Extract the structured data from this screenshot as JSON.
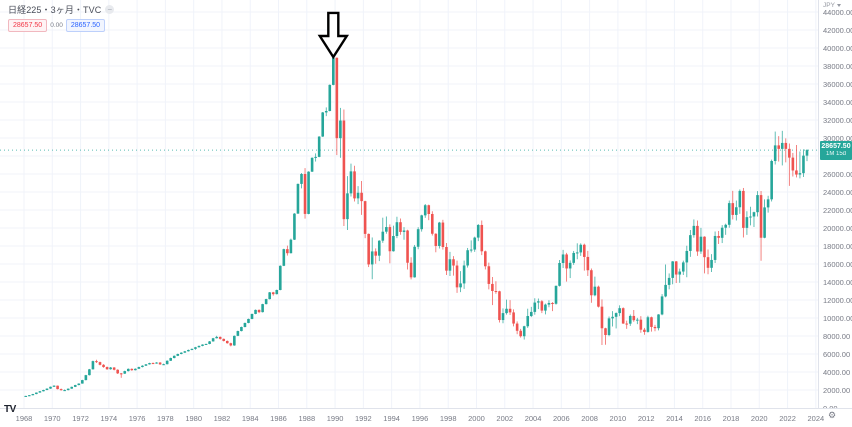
{
  "colors": {
    "up": "#26a69a",
    "down": "#ef5350",
    "grid": "#f0f3fa",
    "axis_text": "#787b86",
    "border": "#e0e3eb",
    "badge": "#26a69a",
    "price_line": "#26a69a",
    "arrow_stroke": "#000000",
    "arrow_fill": "#ffffff"
  },
  "header": {
    "symbol_title": "日経225・3ヶ月・TVC",
    "sell_price": "28657.50",
    "spread": "0.00",
    "buy_price": "28657.50"
  },
  "price_axis": {
    "currency_label": "JPY",
    "last_price_label": "28657.50",
    "countdown": "1M 15d",
    "tick_values": [
      44000,
      42000,
      40000,
      38000,
      36000,
      34000,
      32000,
      30000,
      26000,
      24000,
      22000,
      20000,
      18000,
      16000,
      14000,
      12000,
      10000,
      8000,
      6000,
      4000,
      2000,
      0
    ]
  },
  "time_axis": {
    "years": [
      1968,
      1970,
      1972,
      1974,
      1976,
      1978,
      1980,
      1982,
      1984,
      1986,
      1988,
      1990,
      1992,
      1994,
      1996,
      1998,
      2000,
      2002,
      2004,
      2006,
      2008,
      2010,
      2012,
      2014,
      2016,
      2018,
      2020,
      2022,
      2024
    ]
  },
  "footer": {
    "logo_text": "TV"
  },
  "icons": {
    "settings": "⚙"
  },
  "chart_data": {
    "type": "candlestick",
    "symbol": "日経225",
    "exchange": "TVC",
    "timeframe": "3ヶ月",
    "currency": "JPY",
    "start": "1968-Q1",
    "end": "2023-Q2",
    "ylim": [
      0,
      44000
    ],
    "x_range_years": [
      1968,
      2024
    ],
    "grid": true,
    "last_price": 28657.5,
    "annotation": {
      "type": "down-arrow",
      "points_to": "1989 bubble peak",
      "x_index": 87,
      "tip_price": 39000,
      "top_price": 43900
    },
    "candles": [
      [
        1300,
        1360,
        1285,
        1340
      ],
      [
        1340,
        1445,
        1320,
        1420
      ],
      [
        1420,
        1572,
        1405,
        1550
      ],
      [
        1550,
        1730,
        1530,
        1715
      ],
      [
        1715,
        1885,
        1700,
        1860
      ],
      [
        1860,
        2025,
        1835,
        2000
      ],
      [
        2000,
        2180,
        1975,
        2155
      ],
      [
        2155,
        2385,
        2130,
        2359
      ],
      [
        2359,
        2534,
        2330,
        2480
      ],
      [
        2480,
        2500,
        2065,
        2100
      ],
      [
        2100,
        2165,
        1929,
        1980
      ],
      [
        1980,
        2060,
        1940,
        1987
      ],
      [
        1987,
        2170,
        1960,
        2150
      ],
      [
        2150,
        2375,
        2130,
        2350
      ],
      [
        2350,
        2580,
        2325,
        2550
      ],
      [
        2550,
        2740,
        2520,
        2714
      ],
      [
        2714,
        3135,
        2700,
        3100
      ],
      [
        3100,
        3685,
        3070,
        3650
      ],
      [
        3650,
        4340,
        3615,
        4300
      ],
      [
        4300,
        5260,
        4260,
        5208
      ],
      [
        5208,
        5360,
        4995,
        5100
      ],
      [
        5100,
        5155,
        4735,
        4800
      ],
      [
        4800,
        4870,
        4475,
        4550
      ],
      [
        4550,
        4615,
        4230,
        4307
      ],
      [
        4307,
        4555,
        4255,
        4500
      ],
      [
        4500,
        4545,
        4180,
        4250
      ],
      [
        4250,
        4300,
        3780,
        3850
      ],
      [
        3850,
        3890,
        3355,
        3817
      ],
      [
        3817,
        4145,
        3785,
        4100
      ],
      [
        4100,
        4395,
        4060,
        4350
      ],
      [
        4350,
        4400,
        4135,
        4200
      ],
      [
        4200,
        4405,
        4170,
        4359
      ],
      [
        4359,
        4595,
        4330,
        4550
      ],
      [
        4550,
        4745,
        4520,
        4700
      ],
      [
        4700,
        4895,
        4670,
        4850
      ],
      [
        4850,
        5030,
        4820,
        4991
      ],
      [
        4991,
        5055,
        4900,
        4950
      ],
      [
        4950,
        5095,
        4920,
        5050
      ],
      [
        5050,
        5100,
        4795,
        4850
      ],
      [
        4850,
        4930,
        4805,
        4866
      ],
      [
        4866,
        5295,
        4840,
        5250
      ],
      [
        5250,
        5595,
        5220,
        5550
      ],
      [
        5550,
        5845,
        5520,
        5800
      ],
      [
        5800,
        6040,
        5770,
        6002
      ],
      [
        6002,
        6190,
        5970,
        6150
      ],
      [
        6150,
        6345,
        6120,
        6300
      ],
      [
        6300,
        6490,
        6270,
        6450
      ],
      [
        6450,
        6605,
        6420,
        6569
      ],
      [
        6569,
        6790,
        6475,
        6750
      ],
      [
        6750,
        6945,
        6710,
        6900
      ],
      [
        6900,
        7090,
        6865,
        7050
      ],
      [
        7050,
        7155,
        7010,
        7116
      ],
      [
        7116,
        7440,
        7090,
        7400
      ],
      [
        7400,
        7795,
        7370,
        7750
      ],
      [
        7750,
        8019,
        7720,
        7900
      ],
      [
        7900,
        7945,
        7595,
        7682
      ],
      [
        7682,
        7720,
        7395,
        7450
      ],
      [
        7450,
        7500,
        7145,
        7200
      ],
      [
        7200,
        7255,
        6849,
        6950
      ],
      [
        6950,
        8060,
        6910,
        8017
      ],
      [
        8017,
        8590,
        7985,
        8550
      ],
      [
        8550,
        9040,
        8515,
        9000
      ],
      [
        9000,
        9490,
        8965,
        9450
      ],
      [
        9450,
        9930,
        9415,
        9894
      ],
      [
        9894,
        10490,
        9860,
        10450
      ],
      [
        10450,
        10940,
        10415,
        10900
      ],
      [
        10900,
        10965,
        10545,
        10650
      ],
      [
        10650,
        11580,
        10615,
        11543
      ],
      [
        11543,
        12140,
        11510,
        12100
      ],
      [
        12100,
        12890,
        12065,
        12850
      ],
      [
        12850,
        12905,
        12485,
        12650
      ],
      [
        12650,
        13150,
        12615,
        13113
      ],
      [
        13113,
        15850,
        13080,
        15800
      ],
      [
        15800,
        17700,
        15765,
        17650
      ],
      [
        17650,
        18045,
        16935,
        17200
      ],
      [
        17200,
        18820,
        17165,
        18701
      ],
      [
        18701,
        21650,
        18670,
        21600
      ],
      [
        21600,
        24950,
        21565,
        24900
      ],
      [
        24900,
        26118,
        24400,
        26000
      ],
      [
        26000,
        26646,
        21036,
        21564
      ],
      [
        21564,
        26310,
        21530,
        26260
      ],
      [
        26260,
        27850,
        26225,
        27800
      ],
      [
        27800,
        28290,
        27385,
        27900
      ],
      [
        27900,
        30200,
        27860,
        30159
      ],
      [
        30159,
        32890,
        30120,
        32840
      ],
      [
        32840,
        33400,
        32430,
        33000
      ],
      [
        33000,
        35950,
        32960,
        35900
      ],
      [
        35900,
        38957,
        35855,
        38916
      ],
      [
        38916,
        38951,
        28105,
        29980
      ],
      [
        29980,
        33344,
        27800,
        31940
      ],
      [
        31940,
        33172,
        20221,
        20983
      ],
      [
        20983,
        25765,
        19782,
        23849
      ],
      [
        23849,
        27150,
        23500,
        26292
      ],
      [
        26292,
        26912,
        22950,
        23291
      ],
      [
        23291,
        24650,
        22650,
        23916
      ],
      [
        23916,
        25222,
        21456,
        22984
      ],
      [
        22984,
        23030,
        18870,
        19346
      ],
      [
        19346,
        19390,
        15660,
        15952
      ],
      [
        15952,
        18950,
        14309,
        17399
      ],
      [
        17399,
        17735,
        16030,
        16925
      ],
      [
        16925,
        18645,
        16320,
        18591
      ],
      [
        18591,
        21148,
        18350,
        19590
      ],
      [
        19590,
        21281,
        19365,
        20106
      ],
      [
        20106,
        20400,
        16078,
        17417
      ],
      [
        17417,
        20270,
        17370,
        19112
      ],
      [
        19112,
        21250,
        18880,
        20644
      ],
      [
        20644,
        21050,
        19250,
        19564
      ],
      [
        19564,
        20100,
        18700,
        19723
      ],
      [
        19723,
        19800,
        15382,
        16140
      ],
      [
        16140,
        16745,
        14295,
        14517
      ],
      [
        14517,
        18117,
        14485,
        17913
      ],
      [
        17913,
        20090,
        17640,
        19868
      ],
      [
        19868,
        21475,
        19600,
        21407
      ],
      [
        21407,
        22667,
        21130,
        22531
      ],
      [
        22531,
        22600,
        20870,
        21556
      ],
      [
        21556,
        21860,
        19161,
        19361
      ],
      [
        19361,
        19420,
        17303,
        18003
      ],
      [
        18003,
        20681,
        17720,
        20605
      ],
      [
        20605,
        20910,
        17600,
        17888
      ],
      [
        17888,
        18330,
        14775,
        15259
      ],
      [
        15259,
        17352,
        14664,
        16527
      ],
      [
        16527,
        16880,
        14715,
        15830
      ],
      [
        15830,
        16380,
        12788,
        13406
      ],
      [
        13406,
        15208,
        12880,
        13842
      ],
      [
        13842,
        16380,
        13232,
        15837
      ],
      [
        15837,
        17782,
        15600,
        17530
      ],
      [
        17530,
        18623,
        17280,
        17605
      ],
      [
        17605,
        19036,
        17350,
        18934
      ],
      [
        18934,
        20437,
        18542,
        20337
      ],
      [
        20337,
        20833,
        16990,
        17411
      ],
      [
        17411,
        17490,
        15395,
        15747
      ],
      [
        15747,
        16150,
        13183,
        13786
      ],
      [
        13786,
        14556,
        11434,
        12999
      ],
      [
        12999,
        14090,
        12700,
        12969
      ],
      [
        12969,
        13025,
        9504,
        9774
      ],
      [
        9774,
        11065,
        9420,
        10543
      ],
      [
        10543,
        12035,
        10380,
        11025
      ],
      [
        11025,
        11980,
        10330,
        10622
      ],
      [
        10622,
        10960,
        9075,
        9383
      ],
      [
        9383,
        9620,
        8197,
        8579
      ],
      [
        8579,
        8790,
        7824,
        7973
      ],
      [
        7973,
        9137,
        7604,
        9083
      ],
      [
        9083,
        11033,
        8900,
        10219
      ],
      [
        10219,
        11238,
        10100,
        10677
      ],
      [
        10677,
        12195,
        10365,
        11715
      ],
      [
        11715,
        12165,
        10990,
        11859
      ],
      [
        11859,
        11990,
        10545,
        10823
      ],
      [
        10823,
        11600,
        10400,
        11489
      ],
      [
        11489,
        11975,
        11200,
        11669
      ],
      [
        11669,
        11770,
        10770,
        11584
      ],
      [
        11584,
        13617,
        11480,
        13574
      ],
      [
        13574,
        16445,
        13500,
        16111
      ],
      [
        16111,
        17563,
        15550,
        17060
      ],
      [
        17060,
        17240,
        14045,
        15505
      ],
      [
        15505,
        16400,
        14437,
        16128
      ],
      [
        16128,
        17450,
        15900,
        17226
      ],
      [
        17226,
        18300,
        16532,
        17287
      ],
      [
        17287,
        18297,
        16900,
        18138
      ],
      [
        18138,
        18262,
        15262,
        16786
      ],
      [
        16786,
        17458,
        14670,
        15308
      ],
      [
        15308,
        15500,
        11691,
        12526
      ],
      [
        12526,
        14601,
        12420,
        13481
      ],
      [
        13481,
        13603,
        11160,
        11260
      ],
      [
        11260,
        12063,
        6995,
        8860
      ],
      [
        8860,
        8910,
        7021,
        8110
      ],
      [
        8110,
        10170,
        7975,
        9958
      ],
      [
        9958,
        10767,
        9050,
        10133
      ],
      [
        10133,
        10620,
        8840,
        10546
      ],
      [
        10546,
        11408,
        10205,
        11090
      ],
      [
        11090,
        11180,
        9347,
        9383
      ],
      [
        9383,
        9704,
        8796,
        9369
      ],
      [
        9369,
        10390,
        9120,
        10229
      ],
      [
        10229,
        10891,
        9578,
        9755
      ],
      [
        9755,
        10017,
        9318,
        9816
      ],
      [
        9816,
        10208,
        8360,
        8700
      ],
      [
        8700,
        8900,
        8135,
        8455
      ],
      [
        8455,
        10255,
        8380,
        10084
      ],
      [
        10084,
        10150,
        8488,
        9007
      ],
      [
        9007,
        9240,
        8530,
        8870
      ],
      [
        8870,
        10433,
        8620,
        10395
      ],
      [
        10395,
        12650,
        10300,
        12398
      ],
      [
        12398,
        15943,
        12300,
        13677
      ],
      [
        13677,
        14953,
        13190,
        14456
      ],
      [
        14456,
        16320,
        13750,
        16291
      ],
      [
        16291,
        16330,
        13885,
        14828
      ],
      [
        14828,
        15490,
        13910,
        15162
      ],
      [
        15162,
        16374,
        14780,
        16174
      ],
      [
        16174,
        18030,
        14529,
        17451
      ],
      [
        17451,
        19779,
        16795,
        19207
      ],
      [
        19207,
        20952,
        18927,
        20236
      ],
      [
        20236,
        20840,
        16901,
        17388
      ],
      [
        17388,
        20012,
        17130,
        19034
      ],
      [
        19034,
        19085,
        14952,
        16759
      ],
      [
        16759,
        17613,
        14864,
        15576
      ],
      [
        15576,
        17100,
        15106,
        16450
      ],
      [
        16450,
        19615,
        16111,
        19114
      ],
      [
        19114,
        19670,
        18224,
        18909
      ],
      [
        18909,
        20318,
        18325,
        20033
      ],
      [
        20033,
        20481,
        19240,
        20356
      ],
      [
        20356,
        23050,
        20030,
        22765
      ],
      [
        22765,
        24129,
        20950,
        21454
      ],
      [
        21454,
        23050,
        20830,
        22305
      ],
      [
        22305,
        24286,
        21575,
        24120
      ],
      [
        24120,
        24448,
        18949,
        20015
      ],
      [
        20015,
        21860,
        19241,
        21206
      ],
      [
        21206,
        22362,
        20289,
        21276
      ],
      [
        21276,
        21823,
        20110,
        21756
      ],
      [
        21756,
        24091,
        21276,
        23657
      ],
      [
        23657,
        24115,
        16358,
        18917
      ],
      [
        18917,
        23185,
        18858,
        22288
      ],
      [
        22288,
        23580,
        21710,
        23185
      ],
      [
        23185,
        27602,
        22948,
        27444
      ],
      [
        27444,
        30714,
        27055,
        29179
      ],
      [
        29179,
        30208,
        27385,
        28792
      ],
      [
        28792,
        30796,
        26954,
        29453
      ],
      [
        29453,
        29960,
        27293,
        28792
      ],
      [
        28792,
        29389,
        24681,
        27821
      ],
      [
        27821,
        28339,
        25720,
        26393
      ],
      [
        26393,
        29223,
        25621,
        25937
      ],
      [
        25937,
        28502,
        25520,
        26095
      ],
      [
        26095,
        28734,
        25662,
        28041
      ],
      [
        28041,
        28757,
        27427,
        28657.5
      ]
    ]
  }
}
